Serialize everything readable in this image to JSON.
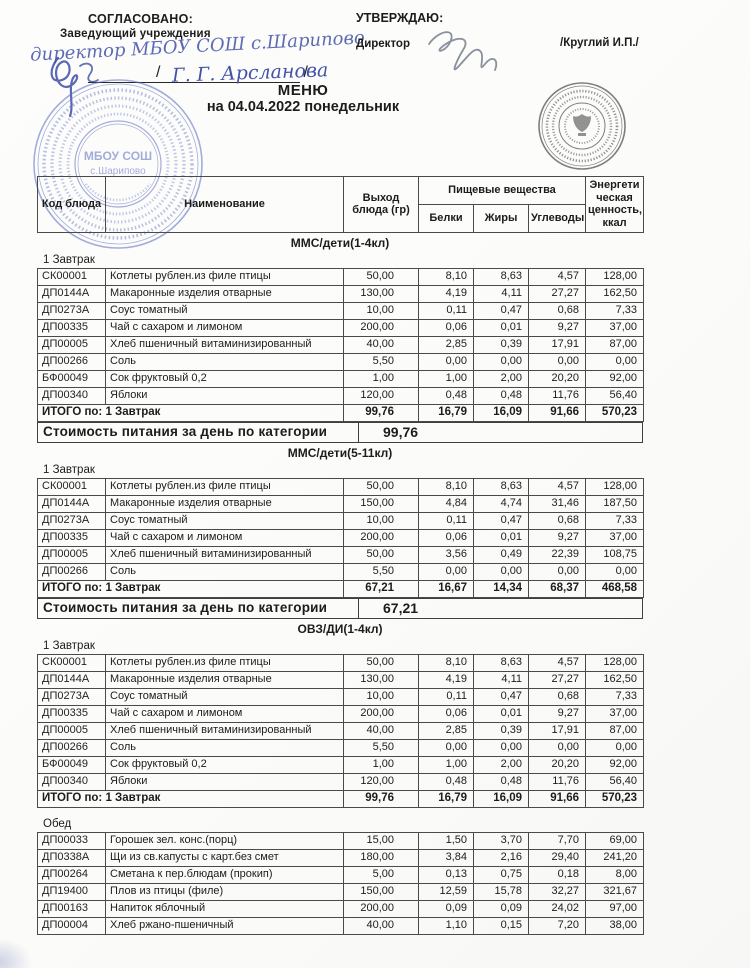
{
  "header": {
    "agreed_label": "СОГЛАСОВАНО:",
    "agreed_role": "Заведующий  учреждения",
    "agreed_handwriting": "директор МБОУ СОШ с.Шарипово",
    "agreed_slash_left": "/",
    "agreed_name": "Г. Г. Арсланова",
    "agreed_slash_right": "/",
    "approve_label": "УТВЕРЖДАЮ:",
    "approve_role": "Директор",
    "approve_name": "/Круглий И.П./"
  },
  "title": "МЕНЮ",
  "date_line": "на 04.04.2022  понедельник",
  "stamp_left": {
    "line1": "МБОУ СОШ",
    "line2": "с.Шарипово"
  },
  "table_header": {
    "code": "Код блюда",
    "name": "Наименование",
    "output": "Выход блюда (гр)",
    "nutrients": "Пищевые вещества",
    "protein": "Белки",
    "fat": "Жиры",
    "carbs": "Углеводы",
    "energy": "Энергети ческая ценность, ккал"
  },
  "sections": [
    {
      "category": "ММС/дети(1-4кл)",
      "meal": "1 Завтрак",
      "rows": [
        [
          "СК00001",
          "Котлеты рублен.из филе птицы",
          "50,00",
          "8,10",
          "8,63",
          "4,57",
          "128,00"
        ],
        [
          "ДП0144А",
          "Макаронные изделия отварные",
          "130,00",
          "4,19",
          "4,11",
          "27,27",
          "162,50"
        ],
        [
          "ДП0273А",
          "Соус томатный",
          "10,00",
          "0,11",
          "0,47",
          "0,68",
          "7,33"
        ],
        [
          "ДП00335",
          "Чай с сахаром и  лимоном",
          "200,00",
          "0,06",
          "0,01",
          "9,27",
          "37,00"
        ],
        [
          "ДП00005",
          "Хлеб пшеничный витаминизированный",
          "40,00",
          "2,85",
          "0,39",
          "17,91",
          "87,00"
        ],
        [
          "ДП00266",
          "Соль",
          "5,50",
          "0,00",
          "0,00",
          "0,00",
          "0,00"
        ],
        [
          "БФ00049",
          "Сок фруктовый 0,2",
          "1,00",
          "1,00",
          "2,00",
          "20,20",
          "92,00"
        ],
        [
          "ДП00340",
          "Яблоки",
          "120,00",
          "0,48",
          "0,48",
          "11,76",
          "56,40"
        ]
      ],
      "total": {
        "label": "ИТОГО по: 1 Завтрак",
        "values": [
          "99,76",
          "16,79",
          "16,09",
          "91,66",
          "570,23"
        ]
      },
      "cost": {
        "label": "Стоимость питания за день по категории",
        "value": "99,76"
      }
    },
    {
      "category": "ММС/дети(5-11кл)",
      "meal": "1 Завтрак",
      "rows": [
        [
          "СК00001",
          "Котлеты рублен.из филе птицы",
          "50,00",
          "8,10",
          "8,63",
          "4,57",
          "128,00"
        ],
        [
          "ДП0144А",
          "Макаронные изделия отварные",
          "150,00",
          "4,84",
          "4,74",
          "31,46",
          "187,50"
        ],
        [
          "ДП0273А",
          "Соус томатный",
          "10,00",
          "0,11",
          "0,47",
          "0,68",
          "7,33"
        ],
        [
          "ДП00335",
          "Чай с сахаром и  лимоном",
          "200,00",
          "0,06",
          "0,01",
          "9,27",
          "37,00"
        ],
        [
          "ДП00005",
          "Хлеб пшеничный витаминизированный",
          "50,00",
          "3,56",
          "0,49",
          "22,39",
          "108,75"
        ],
        [
          "ДП00266",
          "Соль",
          "5,50",
          "0,00",
          "0,00",
          "0,00",
          "0,00"
        ]
      ],
      "total": {
        "label": "ИТОГО по: 1 Завтрак",
        "values": [
          "67,21",
          "16,67",
          "14,34",
          "68,37",
          "468,58"
        ]
      },
      "cost": {
        "label": "Стоимость питания за день по категории",
        "value": "67,21"
      }
    },
    {
      "category": "ОВЗ/ДИ(1-4кл)",
      "meal": "1 Завтрак",
      "rows": [
        [
          "СК00001",
          "Котлеты рублен.из филе птицы",
          "50,00",
          "8,10",
          "8,63",
          "4,57",
          "128,00"
        ],
        [
          "ДП0144А",
          "Макаронные изделия отварные",
          "130,00",
          "4,19",
          "4,11",
          "27,27",
          "162,50"
        ],
        [
          "ДП0273А",
          "Соус томатный",
          "10,00",
          "0,11",
          "0,47",
          "0,68",
          "7,33"
        ],
        [
          "ДП00335",
          "Чай с сахаром и  лимоном",
          "200,00",
          "0,06",
          "0,01",
          "9,27",
          "37,00"
        ],
        [
          "ДП00005",
          "Хлеб пшеничный витаминизированный",
          "40,00",
          "2,85",
          "0,39",
          "17,91",
          "87,00"
        ],
        [
          "ДП00266",
          "Соль",
          "5,50",
          "0,00",
          "0,00",
          "0,00",
          "0,00"
        ],
        [
          "БФ00049",
          "Сок фруктовый 0,2",
          "1,00",
          "1,00",
          "2,00",
          "20,20",
          "92,00"
        ],
        [
          "ДП00340",
          "Яблоки",
          "120,00",
          "0,48",
          "0,48",
          "11,76",
          "56,40"
        ]
      ],
      "total": {
        "label": "ИТОГО по: 1 Завтрак",
        "values": [
          "99,76",
          "16,79",
          "16,09",
          "91,66",
          "570,23"
        ]
      }
    },
    {
      "meal": "Обед",
      "rows": [
        [
          "ДП00033",
          "Горошек зел. конс.(порц)",
          "15,00",
          "1,50",
          "3,70",
          "7,70",
          "69,00"
        ],
        [
          "ДП0338А",
          "Щи из св.капусты с карт.без смет",
          "180,00",
          "3,84",
          "2,16",
          "29,40",
          "241,20"
        ],
        [
          "ДП00264",
          "Сметана к пер.блюдам (прокип)",
          "5,00",
          "0,13",
          "0,75",
          "0,18",
          "8,00"
        ],
        [
          "ДП19400",
          "Плов из птицы (филе)",
          "150,00",
          "12,59",
          "15,78",
          "32,27",
          "321,67"
        ],
        [
          "ДП00163",
          "Напиток яблочный",
          "200,00",
          "0,09",
          "0,09",
          "24,02",
          "97,00"
        ],
        [
          "ДП00004",
          "Хлеб ржано-пшеничный",
          "40,00",
          "1,10",
          "0,15",
          "7,20",
          "38,00"
        ]
      ]
    }
  ]
}
